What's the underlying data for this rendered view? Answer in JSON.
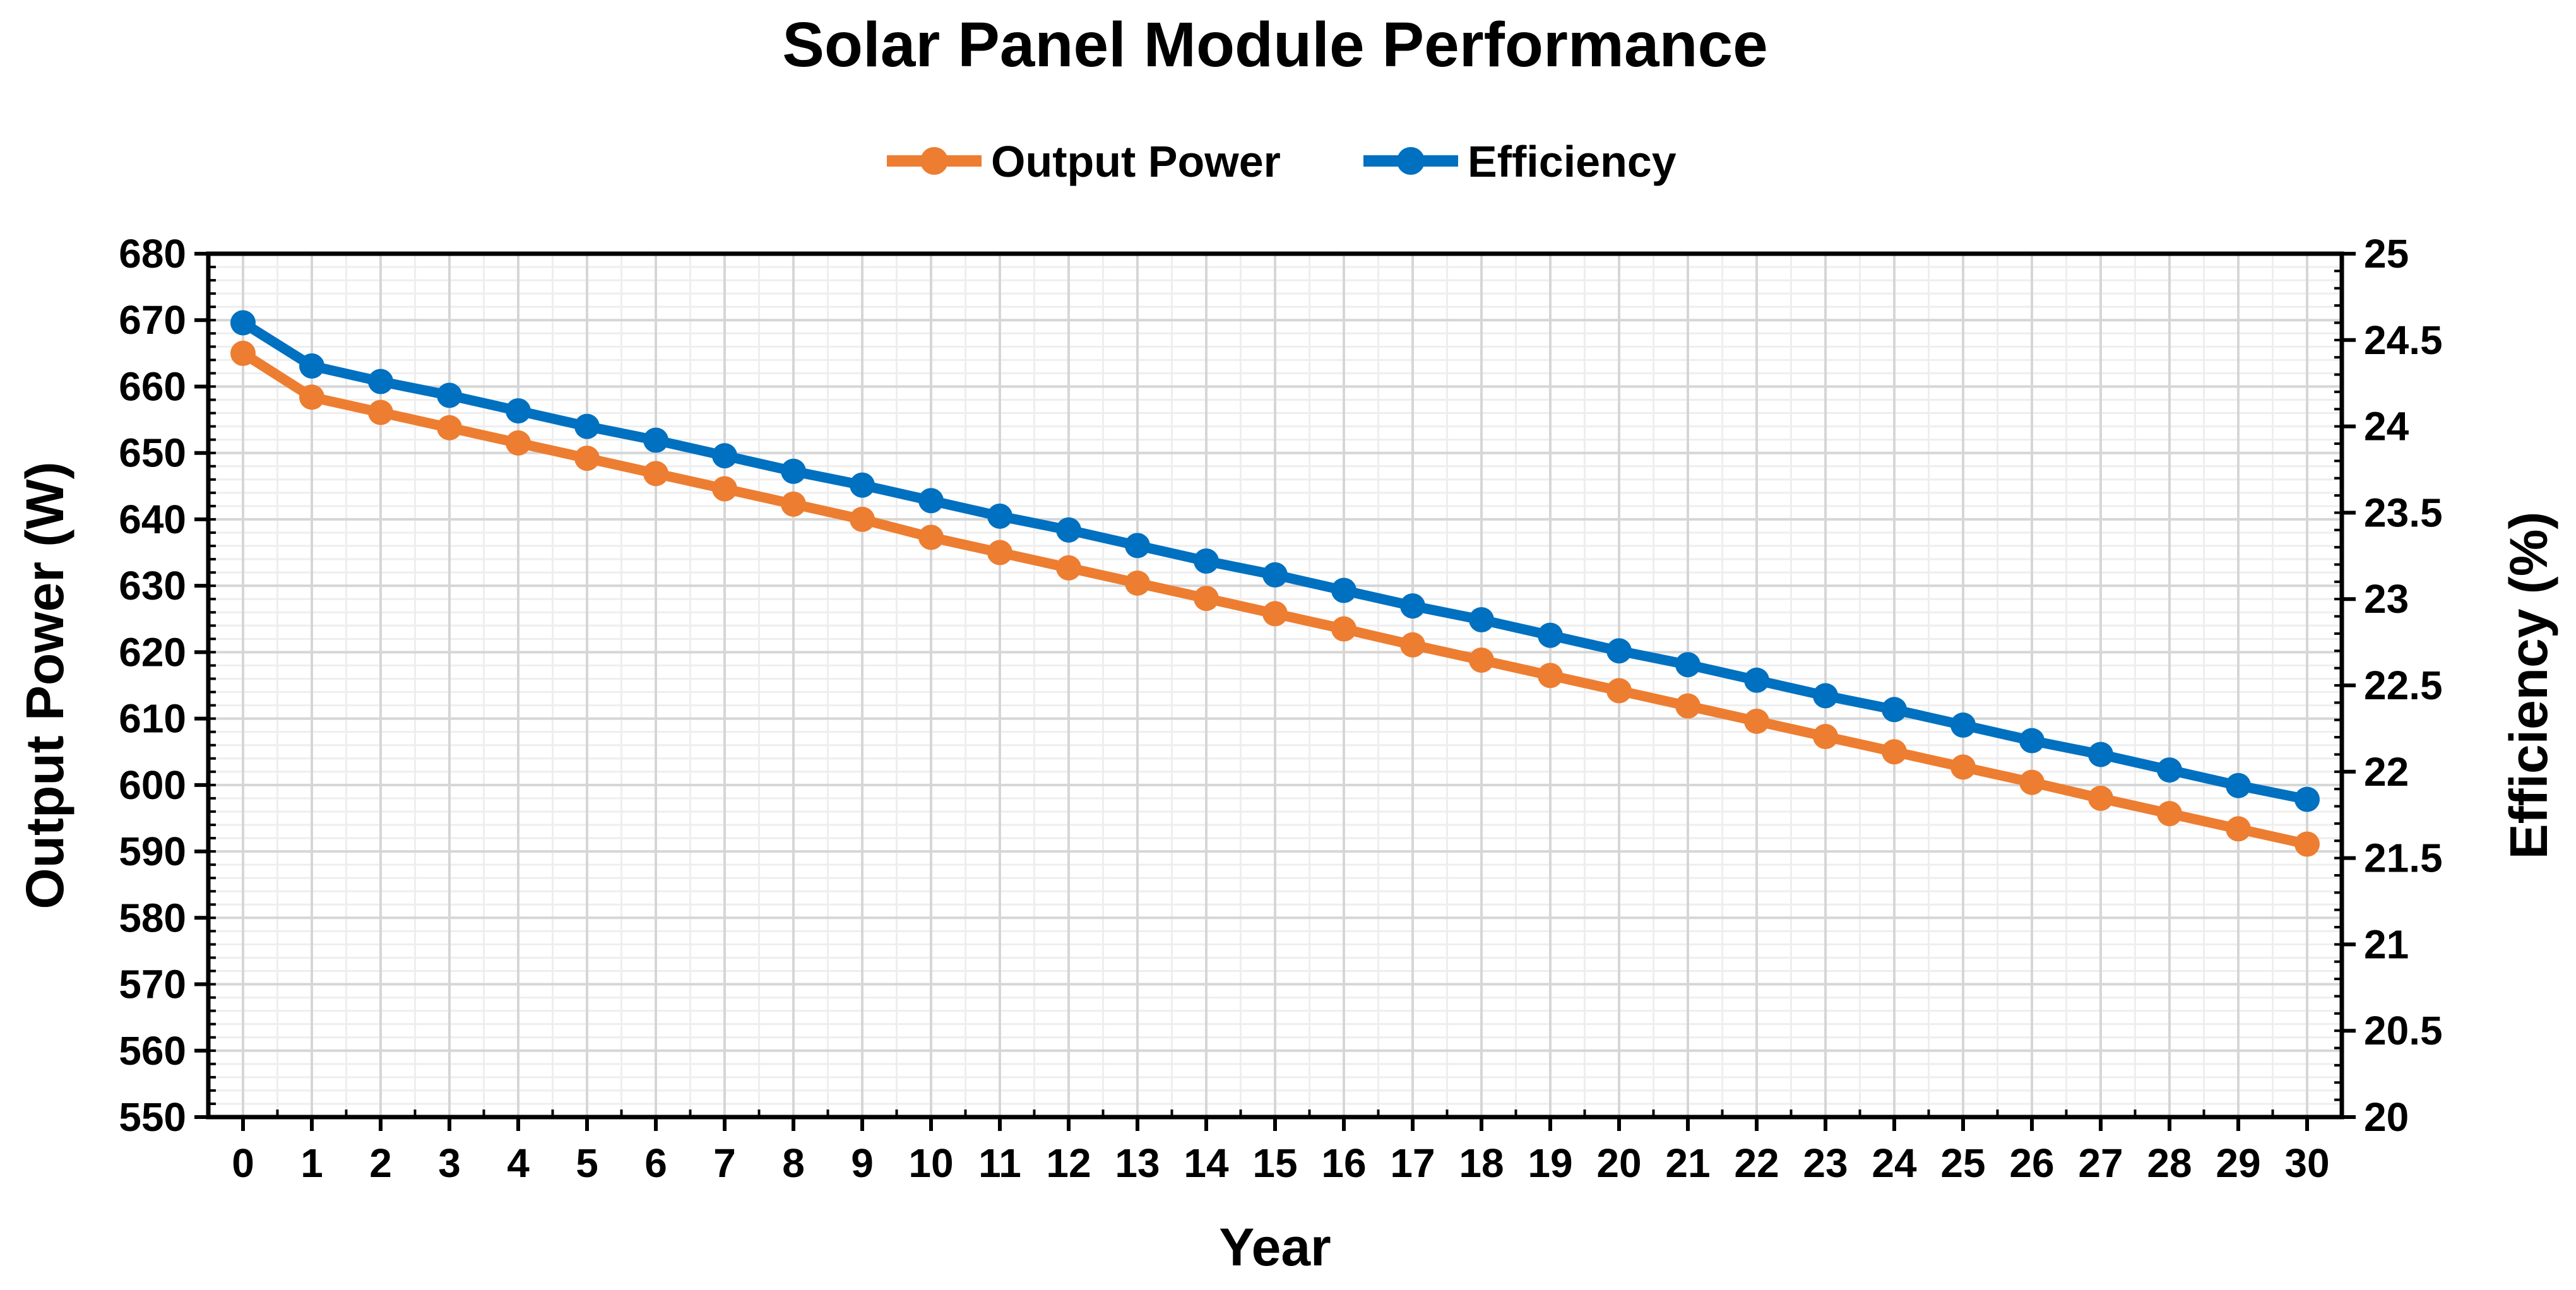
{
  "chart_data": {
    "type": "line",
    "title": "Solar Panel Module Performance",
    "xlabel": "Year",
    "ylabel": "Output Power (W)",
    "y2label": "Efficiency (%)",
    "x": [
      0,
      1,
      2,
      3,
      4,
      5,
      6,
      7,
      8,
      9,
      10,
      11,
      12,
      13,
      14,
      15,
      16,
      17,
      18,
      19,
      20,
      21,
      22,
      23,
      24,
      25,
      26,
      27,
      28,
      29,
      30
    ],
    "xlim": [
      0,
      30
    ],
    "ylim": [
      550,
      680
    ],
    "y2lim": [
      20,
      25
    ],
    "yticks": [
      550,
      560,
      570,
      580,
      590,
      600,
      610,
      620,
      630,
      640,
      650,
      660,
      670,
      680
    ],
    "y2ticks": [
      20,
      20.5,
      21,
      21.5,
      22,
      22.5,
      23,
      23.5,
      24,
      24.5,
      25
    ],
    "grid": true,
    "legend_position": "top-center",
    "series": [
      {
        "name": "Output Power",
        "axis": "left",
        "color": "#ED7D31",
        "values": [
          665.0,
          658.4,
          656.1,
          653.8,
          651.5,
          649.2,
          646.9,
          644.6,
          642.3,
          640.0,
          637.3,
          635.0,
          632.7,
          630.4,
          628.1,
          625.8,
          623.5,
          621.1,
          618.8,
          616.5,
          614.2,
          611.9,
          609.6,
          607.3,
          605.0,
          602.7,
          600.4,
          598.0,
          595.7,
          593.4,
          591.1
        ]
      },
      {
        "name": "Efficiency",
        "axis": "right",
        "color": "#0070C0",
        "values": [
          24.6,
          24.35,
          24.26,
          24.18,
          24.09,
          24.0,
          23.92,
          23.83,
          23.74,
          23.66,
          23.57,
          23.48,
          23.4,
          23.31,
          23.22,
          23.14,
          23.05,
          22.96,
          22.88,
          22.79,
          22.7,
          22.62,
          22.53,
          22.44,
          22.36,
          22.27,
          22.18,
          22.1,
          22.01,
          21.92,
          21.84
        ]
      }
    ]
  }
}
